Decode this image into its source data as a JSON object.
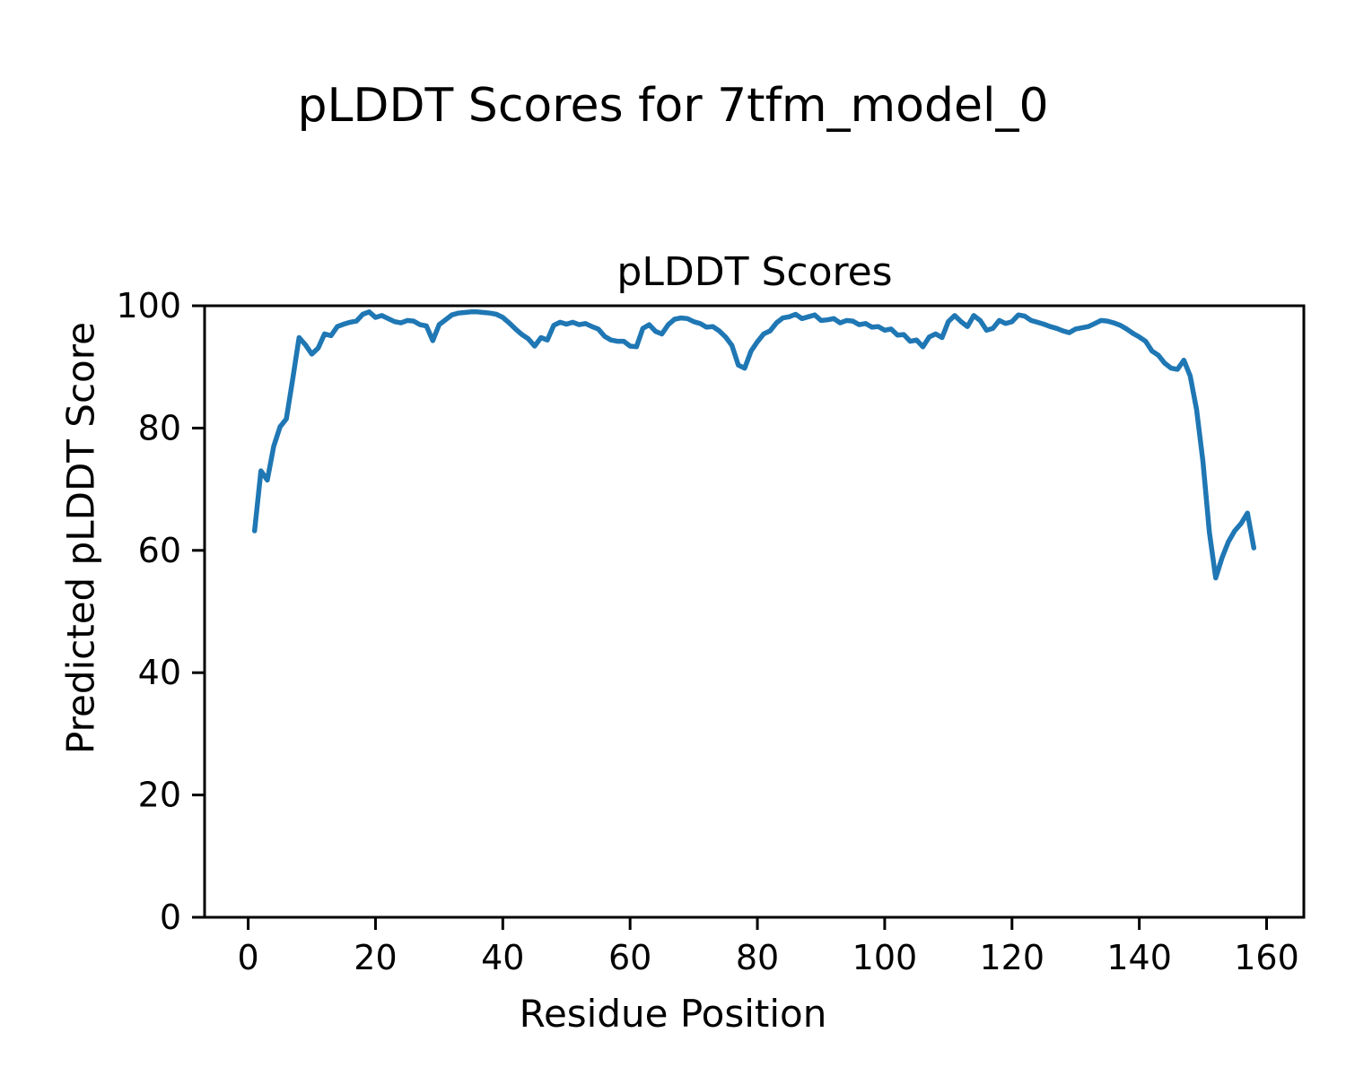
{
  "figure": {
    "title": "pLDDT Scores for 7tfm_model_0"
  },
  "chart_data": {
    "type": "line",
    "title": "pLDDT Scores",
    "xlabel": "Residue Position",
    "ylabel": "Predicted pLDDT Score",
    "xlim": [
      -6.85,
      165.85
    ],
    "ylim": [
      0,
      100
    ],
    "xticks": [
      0,
      20,
      40,
      60,
      80,
      100,
      120,
      140,
      160
    ],
    "yticks": [
      0,
      20,
      40,
      60,
      80,
      100
    ],
    "grid": false,
    "legend_position": "none",
    "axis_color": "#000000",
    "series": [
      {
        "name": "pLDDT",
        "color": "#1f77b4",
        "x_start": 1,
        "x_step": 1,
        "values": [
          63.2,
          73.0,
          71.5,
          77.0,
          80.2,
          81.5,
          88.0,
          94.8,
          93.6,
          92.1,
          93.1,
          95.4,
          95.1,
          96.6,
          97.0,
          97.3,
          97.5,
          98.6,
          99.0,
          98.1,
          98.4,
          97.9,
          97.4,
          97.2,
          97.6,
          97.5,
          96.9,
          96.7,
          94.3,
          96.9,
          97.7,
          98.5,
          98.8,
          98.9,
          99.0,
          99.0,
          98.9,
          98.8,
          98.6,
          98.1,
          97.2,
          96.2,
          95.3,
          94.6,
          93.4,
          94.8,
          94.4,
          96.8,
          97.3,
          97.0,
          97.3,
          96.9,
          97.1,
          96.6,
          96.2,
          95.0,
          94.4,
          94.2,
          94.2,
          93.4,
          93.3,
          96.3,
          96.9,
          95.8,
          95.4,
          96.9,
          97.8,
          98.0,
          97.9,
          97.4,
          97.1,
          96.5,
          96.6,
          95.9,
          94.9,
          93.5,
          90.3,
          89.8,
          92.6,
          94.1,
          95.4,
          95.9,
          97.2,
          98.0,
          98.2,
          98.6,
          97.9,
          98.2,
          98.5,
          97.6,
          97.7,
          97.9,
          97.2,
          97.6,
          97.5,
          96.9,
          97.1,
          96.5,
          96.6,
          96.0,
          96.2,
          95.2,
          95.3,
          94.2,
          94.4,
          93.3,
          94.9,
          95.4,
          94.8,
          97.4,
          98.4,
          97.4,
          96.6,
          98.4,
          97.6,
          96.0,
          96.3,
          97.6,
          97.1,
          97.4,
          98.5,
          98.3,
          97.6,
          97.3,
          97.0,
          96.6,
          96.3,
          95.9,
          95.6,
          96.2,
          96.4,
          96.6,
          97.1,
          97.6,
          97.5,
          97.2,
          96.8,
          96.2,
          95.5,
          94.9,
          94.2,
          92.6,
          91.9,
          90.6,
          89.8,
          89.6,
          91.1,
          88.5,
          83.0,
          74.5,
          63.0,
          55.5,
          58.8,
          61.4,
          63.2,
          64.4,
          66.1,
          60.4
        ]
      }
    ]
  }
}
